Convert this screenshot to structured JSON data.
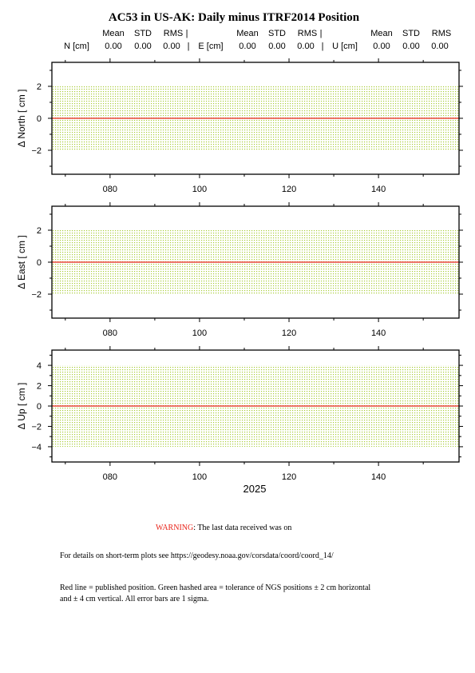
{
  "title": "AC53 in US-AK: Daily minus ITRF2014 Position",
  "stats_header": {
    "groups": [
      {
        "label": "N [cm]",
        "mean_label": "Mean",
        "std_label": "STD",
        "rms_label": "RMS",
        "sep": "|",
        "mean": "0.00",
        "std": "0.00",
        "rms": "0.00"
      },
      {
        "label": "E [cm]",
        "mean_label": "Mean",
        "std_label": "STD",
        "rms_label": "RMS",
        "sep": "|",
        "mean": "0.00",
        "std": "0.00",
        "rms": "0.00"
      },
      {
        "label": "U [cm]",
        "mean_label": "Mean",
        "std_label": "STD",
        "rms_label": "RMS",
        "sep": "",
        "mean": "0.00",
        "std": "0.00",
        "rms": "0.00"
      }
    ]
  },
  "chart_data": [
    {
      "type": "line",
      "ylabel": "Δ North  [ cm ]",
      "xlim": [
        67,
        158
      ],
      "ylim": [
        -3.5,
        3.5
      ],
      "yticks_major": [
        -2,
        0,
        2
      ],
      "yticks_minor": [
        -3,
        -1,
        1,
        3
      ],
      "xticks_major": [
        "080",
        "100",
        "120",
        "140"
      ],
      "tolerance_band": [
        -2,
        2
      ],
      "published_position": 0,
      "xlabel": ""
    },
    {
      "type": "line",
      "ylabel": "Δ East  [ cm ]",
      "xlim": [
        67,
        158
      ],
      "ylim": [
        -3.5,
        3.5
      ],
      "yticks_major": [
        -2,
        0,
        2
      ],
      "yticks_minor": [
        -3,
        -1,
        1,
        3
      ],
      "xticks_major": [
        "080",
        "100",
        "120",
        "140"
      ],
      "tolerance_band": [
        -2,
        2
      ],
      "published_position": 0,
      "xlabel": ""
    },
    {
      "type": "line",
      "ylabel": "Δ Up  [ cm ]",
      "xlim": [
        67,
        158
      ],
      "ylim": [
        -5.5,
        5.5
      ],
      "yticks_major": [
        -4,
        -2,
        0,
        2,
        4
      ],
      "yticks_minor": [
        -5,
        -3,
        -1,
        1,
        3,
        5
      ],
      "xticks_major": [
        "080",
        "100",
        "120",
        "140"
      ],
      "tolerance_band": [
        -4,
        4
      ],
      "published_position": 0,
      "xlabel": "2025"
    }
  ],
  "colors": {
    "band": "#a9cd3a",
    "published_line": "#e8241a",
    "warning": "#e8241a"
  },
  "notes": {
    "warning_word": "WARNING",
    "warning_rest": ": The last data received was on",
    "details": "For details on short-term plots see https://geodesy.noaa.gov/corsdata/coord/coord_14/",
    "legend_line1": "Red line = published position.  Green hashed area = tolerance of NGS positions ± 2 cm horizontal",
    "legend_line2": "and ± 4 cm vertical.  All error bars are 1 sigma."
  }
}
